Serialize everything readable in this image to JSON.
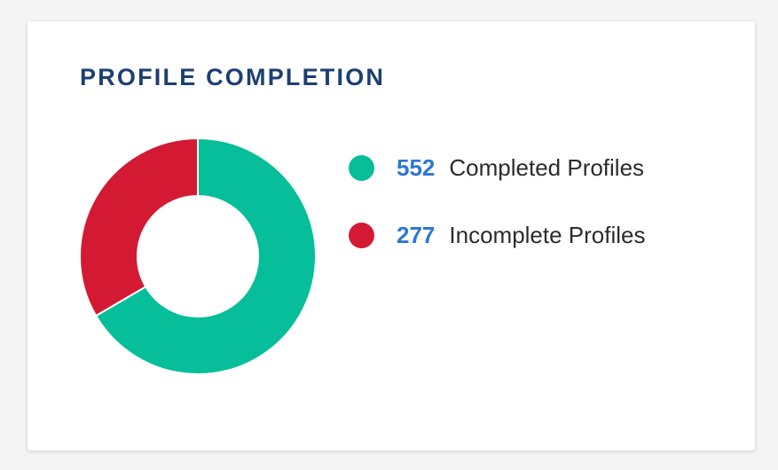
{
  "card": {
    "title": "PROFILE COMPLETION"
  },
  "chart_data": {
    "type": "pie",
    "style": "donut",
    "categories": [
      "Completed Profiles",
      "Incomplete Profiles"
    ],
    "values": [
      552,
      277
    ],
    "colors": [
      "#06be99",
      "#d41a33"
    ],
    "title": "PROFILE COMPLETION",
    "legend": "right",
    "legend_entries": [
      {
        "value": "552",
        "label": "Completed Profiles",
        "color": "#06be99"
      },
      {
        "value": "277",
        "label": "Incomplete Profiles",
        "color": "#d41a33"
      }
    ]
  }
}
